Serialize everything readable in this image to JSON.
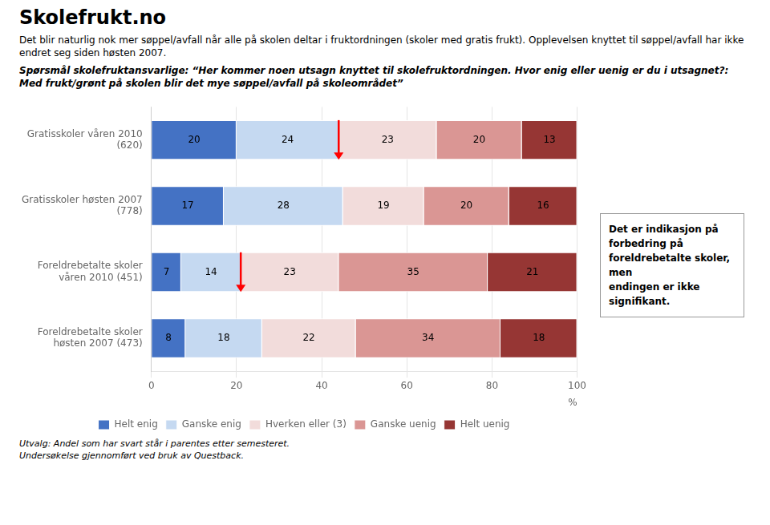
{
  "chart_data": {
    "type": "bar",
    "orientation": "horizontal",
    "stacked": true,
    "title": "Skolefrukt.no",
    "subtitle": [
      "Det blir naturlig nok mer søppel/avfall når alle på skolen deltar i fruktordningen (skoler med gratis frukt). Opplevelsen knyttet til søppel/avfall har ikke endret seg siden høsten 2007.",
      "Spørsmål  skolefruktansvarlige: “Her kommer noen utsagn knyttet til skolefruktordningen. Hvor enig eller uenig er du i utsagnet?: Med frukt/grønt på skolen blir det mye søppel/avfall på skoleområdet”"
    ],
    "categories": [
      "Gratisskoler våren 2010\n(620)",
      "Gratisskoler høsten 2007\n(778)",
      "Foreldrebetalte skoler\nvåren 2010 (451)",
      "Foreldrebetalte skoler\nhøsten 2007 (473)"
    ],
    "series": [
      {
        "name": "Helt enig",
        "color": "#4472C4",
        "values": [
          20,
          17,
          7,
          8
        ]
      },
      {
        "name": "Ganske enig",
        "color": "#C5D9F1",
        "values": [
          24,
          28,
          14,
          18
        ]
      },
      {
        "name": "Hverken eller (3)",
        "color": "#F2DCDB",
        "values": [
          23,
          19,
          23,
          22
        ]
      },
      {
        "name": "Ganske uenig",
        "color": "#DA9694",
        "values": [
          20,
          20,
          35,
          34
        ]
      },
      {
        "name": "Helt uenig",
        "color": "#963634",
        "values": [
          13,
          16,
          21,
          18
        ]
      }
    ],
    "xlabel": "%",
    "xlim": [
      0,
      100
    ],
    "xticks": [
      0,
      20,
      40,
      60,
      80,
      100
    ],
    "grid": true,
    "legend": "bottom",
    "data_labels": true,
    "annotations": [
      {
        "text": "Det er indikasjon på\nforbedring på\nforeldrebetalte skoler, men\nendingen er ikke signifikant."
      },
      {
        "type": "arrow",
        "x": 44,
        "category": "Gratisskoler våren 2010\n(620)",
        "color": "#FF0000"
      },
      {
        "type": "arrow",
        "x": 21,
        "category": "Foreldrebetalte skoler\nvåren 2010 (451)",
        "color": "#FF0000"
      }
    ],
    "footer": [
      "Utvalg:  Andel som har svart står i parentes etter semesteret.",
      "Undersøkelse gjennomført ved bruk av Questback."
    ]
  }
}
